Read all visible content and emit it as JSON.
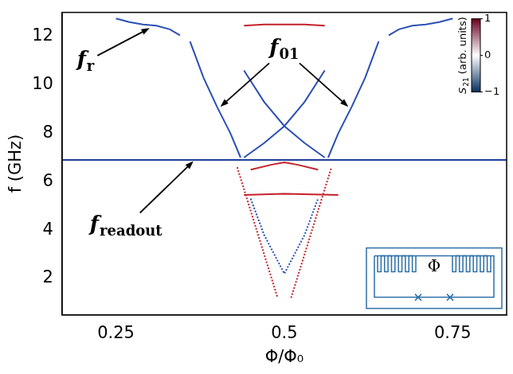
{
  "chart_data": {
    "type": "line",
    "x_label": "Φ/Φ₀",
    "y_label": "f (GHz)",
    "xlim": [
      0.17,
      0.83
    ],
    "ylim": [
      0.5,
      13
    ],
    "xticks": [
      0.25,
      0.5,
      0.75
    ],
    "yticks": [
      2,
      4,
      6,
      8,
      10,
      12
    ],
    "grid": false,
    "series": [
      {
        "color": "#2b4fb5",
        "marker": "none",
        "line_style": "solid",
        "x": [
          0.25,
          0.27,
          0.29,
          0.31,
          0.33,
          0.345
        ],
        "values": [
          12.75,
          12.6,
          12.5,
          12.45,
          12.3,
          12.05
        ]
      },
      {
        "color": "#2b4fb5",
        "marker": "none",
        "line_style": "solid",
        "x": [
          0.655,
          0.67,
          0.69,
          0.71,
          0.73,
          0.75
        ],
        "values": [
          12.05,
          12.3,
          12.45,
          12.5,
          12.6,
          12.75
        ]
      },
      {
        "color": "#c4212b",
        "marker": "none",
        "line_style": "solid",
        "x": [
          0.44,
          0.47,
          0.5,
          0.53,
          0.56
        ],
        "values": [
          12.45,
          12.5,
          12.5,
          12.5,
          12.45
        ]
      },
      {
        "color": "#2b4fb5",
        "marker": "none",
        "line_style": "solid",
        "x": [
          0.36,
          0.38,
          0.4,
          0.42,
          0.435
        ],
        "values": [
          11.8,
          10.3,
          9.1,
          8.0,
          7.0
        ]
      },
      {
        "color": "#2b4fb5",
        "marker": "none",
        "line_style": "solid",
        "x": [
          0.565,
          0.58,
          0.6,
          0.62,
          0.64
        ],
        "values": [
          7.0,
          8.0,
          9.1,
          10.3,
          11.8
        ]
      },
      {
        "color": "#2b4fb5",
        "marker": "none",
        "line_style": "solid",
        "x": [
          0.44,
          0.47,
          0.5,
          0.53,
          0.56
        ],
        "values": [
          10.6,
          9.3,
          8.3,
          7.6,
          7.0
        ]
      },
      {
        "color": "#2b4fb5",
        "marker": "none",
        "line_style": "solid",
        "x": [
          0.44,
          0.47,
          0.5,
          0.53,
          0.56
        ],
        "values": [
          7.0,
          7.6,
          8.3,
          9.3,
          10.6
        ]
      },
      {
        "color": "#1f3f9a",
        "marker": "none",
        "line_style": "solid",
        "x": [
          0.17,
          0.83
        ],
        "values": [
          6.9,
          6.9
        ]
      },
      {
        "color": "#c4212b",
        "marker": "none",
        "line_style": "solid",
        "x": [
          0.45,
          0.48,
          0.5,
          0.52,
          0.55
        ],
        "values": [
          6.5,
          6.7,
          6.8,
          6.7,
          6.5
        ]
      },
      {
        "color": "#c4212b",
        "marker": "none",
        "line_style": "solid",
        "x": [
          0.44,
          0.5,
          0.58
        ],
        "values": [
          5.45,
          5.5,
          5.45
        ]
      },
      {
        "color": "#c4212b",
        "marker": "none",
        "line_style": "dotted",
        "x": [
          0.43,
          0.45,
          0.47,
          0.49
        ],
        "values": [
          6.6,
          4.8,
          3.0,
          1.2
        ]
      },
      {
        "color": "#c4212b",
        "marker": "none",
        "line_style": "dotted",
        "x": [
          0.51,
          0.53,
          0.55,
          0.57
        ],
        "values": [
          1.2,
          3.0,
          4.8,
          6.6
        ]
      },
      {
        "color": "#2b4fb5",
        "marker": "none",
        "line_style": "dotted",
        "x": [
          0.45,
          0.47,
          0.5,
          0.53,
          0.55
        ],
        "values": [
          5.3,
          3.8,
          2.2,
          3.8,
          5.3
        ]
      }
    ],
    "annotations": [
      {
        "text": "f",
        "sub": "r",
        "x": 0.205,
        "y": 11.0,
        "points_to": [
          [
            0.3,
            12.35
          ]
        ]
      },
      {
        "text": "f",
        "sub": "01",
        "x": 0.5,
        "y": 11.5,
        "points_to": [
          [
            0.405,
            9.1
          ],
          [
            0.595,
            9.1
          ]
        ]
      },
      {
        "text": "f",
        "sub": "readout",
        "x": 0.265,
        "y": 4.2,
        "points_to": [
          [
            0.365,
            6.85
          ]
        ]
      }
    ],
    "colorbar": {
      "label": {
        "text": "S",
        "sub": "21",
        "after": " (arb. units)"
      },
      "range": [
        -1,
        1
      ],
      "ticks": [
        {
          "value": -1,
          "label": "−1"
        },
        0,
        1
      ],
      "colors": [
        "#053061",
        "#ffffff",
        "#67001f"
      ]
    },
    "inset_label": "Φ"
  }
}
